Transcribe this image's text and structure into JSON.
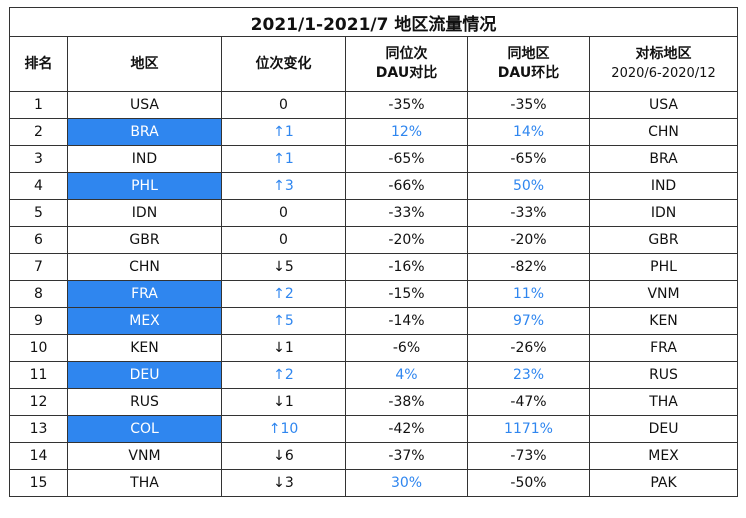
{
  "title": "2021/1-2021/7 地区流量情况",
  "colors": {
    "highlight_bg": "#2f86ef",
    "positive_text": "#2f86ef",
    "border": "#333333"
  },
  "headers": {
    "rank": "排名",
    "region": "地区",
    "rank_change": "位次变化",
    "dau_same_rank_1": "同位次",
    "dau_same_rank_2": "DAU对比",
    "dau_same_region_1": "同地区",
    "dau_same_region_2": "DAU环比",
    "benchmark_1": "对标地区",
    "benchmark_2": "2020/6-2020/12"
  },
  "chart_data": {
    "type": "table",
    "title": "2021/1-2021/7 地区流量情况",
    "columns": [
      "排名",
      "地区",
      "位次变化",
      "同位次DAU对比",
      "同地区DAU环比",
      "对标地区 2020/6-2020/12"
    ],
    "rows": [
      {
        "rank": "1",
        "region": "USA",
        "change": "0",
        "same_rank": "-35%",
        "same_region": "-35%",
        "benchmark": "USA",
        "hl_region": false,
        "up_change": false,
        "up_rank": false,
        "up_region": false
      },
      {
        "rank": "2",
        "region": "BRA",
        "change": "↑1",
        "same_rank": "12%",
        "same_region": "14%",
        "benchmark": "CHN",
        "hl_region": true,
        "up_change": true,
        "up_rank": true,
        "up_region": true
      },
      {
        "rank": "3",
        "region": "IND",
        "change": "↑1",
        "same_rank": "-65%",
        "same_region": "-65%",
        "benchmark": "BRA",
        "hl_region": false,
        "up_change": true,
        "up_rank": false,
        "up_region": false
      },
      {
        "rank": "4",
        "region": "PHL",
        "change": "↑3",
        "same_rank": "-66%",
        "same_region": "50%",
        "benchmark": "IND",
        "hl_region": true,
        "up_change": true,
        "up_rank": false,
        "up_region": true
      },
      {
        "rank": "5",
        "region": "IDN",
        "change": "0",
        "same_rank": "-33%",
        "same_region": "-33%",
        "benchmark": "IDN",
        "hl_region": false,
        "up_change": false,
        "up_rank": false,
        "up_region": false
      },
      {
        "rank": "6",
        "region": "GBR",
        "change": "0",
        "same_rank": "-20%",
        "same_region": "-20%",
        "benchmark": "GBR",
        "hl_region": false,
        "up_change": false,
        "up_rank": false,
        "up_region": false
      },
      {
        "rank": "7",
        "region": "CHN",
        "change": "↓5",
        "same_rank": "-16%",
        "same_region": "-82%",
        "benchmark": "PHL",
        "hl_region": false,
        "up_change": false,
        "up_rank": false,
        "up_region": false
      },
      {
        "rank": "8",
        "region": "FRA",
        "change": "↑2",
        "same_rank": "-15%",
        "same_region": "11%",
        "benchmark": "VNM",
        "hl_region": true,
        "up_change": true,
        "up_rank": false,
        "up_region": true
      },
      {
        "rank": "9",
        "region": "MEX",
        "change": "↑5",
        "same_rank": "-14%",
        "same_region": "97%",
        "benchmark": "KEN",
        "hl_region": true,
        "up_change": true,
        "up_rank": false,
        "up_region": true
      },
      {
        "rank": "10",
        "region": "KEN",
        "change": "↓1",
        "same_rank": "-6%",
        "same_region": "-26%",
        "benchmark": "FRA",
        "hl_region": false,
        "up_change": false,
        "up_rank": false,
        "up_region": false
      },
      {
        "rank": "11",
        "region": "DEU",
        "change": "↑2",
        "same_rank": "4%",
        "same_region": "23%",
        "benchmark": "RUS",
        "hl_region": true,
        "up_change": true,
        "up_rank": true,
        "up_region": true
      },
      {
        "rank": "12",
        "region": "RUS",
        "change": "↓1",
        "same_rank": "-38%",
        "same_region": "-47%",
        "benchmark": "THA",
        "hl_region": false,
        "up_change": false,
        "up_rank": false,
        "up_region": false
      },
      {
        "rank": "13",
        "region": "COL",
        "change": "↑10",
        "same_rank": "-42%",
        "same_region": "1171%",
        "benchmark": "DEU",
        "hl_region": true,
        "up_change": true,
        "up_rank": false,
        "up_region": true
      },
      {
        "rank": "14",
        "region": "VNM",
        "change": "↓6",
        "same_rank": "-37%",
        "same_region": "-73%",
        "benchmark": "MEX",
        "hl_region": false,
        "up_change": false,
        "up_rank": false,
        "up_region": false
      },
      {
        "rank": "15",
        "region": "THA",
        "change": "↓3",
        "same_rank": "30%",
        "same_region": "-50%",
        "benchmark": "PAK",
        "hl_region": false,
        "up_change": false,
        "up_rank": true,
        "up_region": false
      }
    ]
  }
}
